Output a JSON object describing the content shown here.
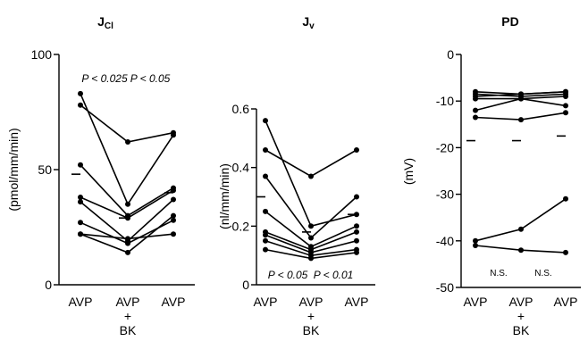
{
  "chart_data": [
    {
      "type": "line",
      "title": "Jcl",
      "ylabel": "(pmol/mm/min)",
      "categories": [
        [
          "AVP"
        ],
        [
          "AVP",
          "+",
          "BK"
        ],
        [
          "AVP"
        ]
      ],
      "ylim": [
        0,
        100
      ],
      "yticks": [
        0,
        50,
        100
      ],
      "series": [
        {
          "values": [
            83,
            35,
            65
          ]
        },
        {
          "values": [
            78,
            62,
            66
          ]
        },
        {
          "values": [
            52,
            30,
            42
          ]
        },
        {
          "values": [
            38,
            29,
            41
          ]
        },
        {
          "values": [
            36,
            19,
            37
          ]
        },
        {
          "values": [
            27,
            18,
            28
          ]
        },
        {
          "values": [
            22,
            14,
            30
          ]
        },
        {
          "values": [
            22,
            20,
            22
          ]
        }
      ],
      "means": [
        48,
        29,
        40
      ],
      "annotations": [
        "P < 0.025",
        "P < 0.05"
      ]
    },
    {
      "type": "line",
      "title": "Jv",
      "ylabel": "(nl/mm/min)",
      "categories": [
        [
          "AVP"
        ],
        [
          "AVP",
          "+",
          "BK"
        ],
        [
          "AVP"
        ]
      ],
      "ylim": [
        0,
        0.6
      ],
      "yticks": [
        0,
        0.2,
        0.4,
        0.6
      ],
      "ytick_labels": [
        "0",
        "0.2",
        "0.4",
        "0.6"
      ],
      "series": [
        {
          "values": [
            0.56,
            0.2,
            0.24
          ]
        },
        {
          "values": [
            0.46,
            0.37,
            0.46
          ]
        },
        {
          "values": [
            0.37,
            0.16,
            0.3
          ]
        },
        {
          "values": [
            0.25,
            0.13,
            0.2
          ]
        },
        {
          "values": [
            0.18,
            0.12,
            0.18
          ]
        },
        {
          "values": [
            0.17,
            0.11,
            0.15
          ]
        },
        {
          "values": [
            0.15,
            0.1,
            0.12
          ]
        },
        {
          "values": [
            0.12,
            0.09,
            0.11
          ]
        }
      ],
      "means": [
        0.3,
        0.18,
        0.24
      ],
      "annotations": [
        "P < 0.05",
        "P < 0.01"
      ]
    },
    {
      "type": "line",
      "title": "PD",
      "ylabel": "(mV)",
      "categories": [
        [
          "AVP"
        ],
        [
          "AVP",
          "+",
          "BK"
        ],
        [
          "AVP"
        ]
      ],
      "ylim": [
        -50,
        0
      ],
      "yticks": [
        -50,
        -40,
        -30,
        -20,
        -10,
        0
      ],
      "series": [
        {
          "values": [
            -8,
            -8.5,
            -8
          ]
        },
        {
          "values": [
            -8.5,
            -9,
            -8.5
          ]
        },
        {
          "values": [
            -9,
            -8.5,
            -8
          ]
        },
        {
          "values": [
            -9.5,
            -9.5,
            -9
          ]
        },
        {
          "values": [
            -12,
            -9.5,
            -11
          ]
        },
        {
          "values": [
            -13.5,
            -14,
            -12.5
          ]
        },
        {
          "values": [
            -40,
            -37.5,
            -31
          ]
        },
        {
          "values": [
            -41,
            -42,
            -42.5
          ]
        }
      ],
      "means": [
        -18.5,
        -18.5,
        -17.5
      ],
      "annotations": [
        "N.S.",
        "N.S."
      ]
    }
  ]
}
